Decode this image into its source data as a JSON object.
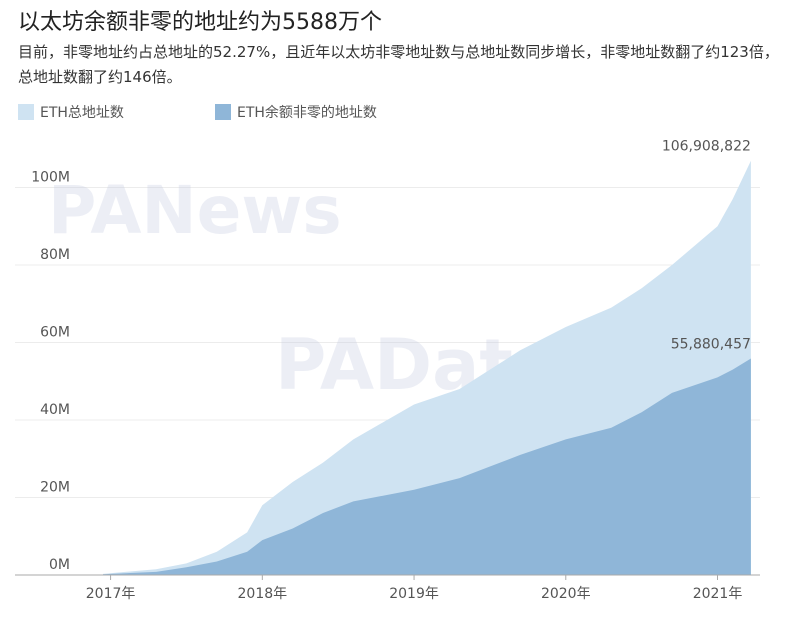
{
  "chart_data": {
    "type": "area",
    "title": "以太坊余额非零的地址约为5588万个",
    "subtitle": "目前，非零地址约占总地址的52.27%，且近年以太坊非零地址数与总地址数同步增长，非零地址数翻了约123倍，总地址数翻了约146倍。",
    "watermarks": [
      "PANews",
      "PAData"
    ],
    "legend": "top-left",
    "grid": true,
    "x": [
      2016.95,
      2017.3,
      2017.5,
      2017.7,
      2017.9,
      2018.0,
      2018.2,
      2018.4,
      2018.6,
      2019.0,
      2019.3,
      2019.5,
      2019.7,
      2020.0,
      2020.3,
      2020.5,
      2020.7,
      2021.0,
      2021.1,
      2021.22
    ],
    "xlim": [
      2016.37,
      2021.28
    ],
    "xticks": [
      {
        "value": 2017,
        "label": "2017年"
      },
      {
        "value": 2018,
        "label": "2018年"
      },
      {
        "value": 2019,
        "label": "2019年"
      },
      {
        "value": 2020,
        "label": "2020年"
      },
      {
        "value": 2021,
        "label": "2021年"
      }
    ],
    "ylim": [
      0,
      112000000
    ],
    "yticks": [
      {
        "value": 0,
        "label": "0M"
      },
      {
        "value": 20000000,
        "label": "20M"
      },
      {
        "value": 40000000,
        "label": "40M"
      },
      {
        "value": 60000000,
        "label": "60M"
      },
      {
        "value": 80000000,
        "label": "80M"
      },
      {
        "value": 100000000,
        "label": "100M"
      }
    ],
    "series": [
      {
        "name": "ETH总地址数",
        "color": "#cfe3f2",
        "values": [
          300000,
          1500000,
          3000000,
          6000000,
          11000000,
          18000000,
          24000000,
          29000000,
          35000000,
          44000000,
          48000000,
          53000000,
          58000000,
          64000000,
          69000000,
          74000000,
          80000000,
          90000000,
          97000000,
          106908822
        ],
        "value_labels": [
          null,
          null,
          null,
          null,
          null,
          null,
          null,
          null,
          null,
          null,
          null,
          null,
          null,
          null,
          null,
          null,
          null,
          null,
          null,
          "106,908,822"
        ]
      },
      {
        "name": "ETH余额非零的地址数",
        "color": "#8fb6d8",
        "values": [
          200000,
          800000,
          2000000,
          3500000,
          6000000,
          9000000,
          12000000,
          16000000,
          19000000,
          22000000,
          25000000,
          28000000,
          31000000,
          35000000,
          38000000,
          42000000,
          47000000,
          51000000,
          53000000,
          55880457
        ],
        "value_labels": [
          null,
          null,
          null,
          null,
          null,
          null,
          null,
          null,
          null,
          null,
          null,
          null,
          null,
          null,
          null,
          null,
          null,
          null,
          null,
          "55,880,457"
        ]
      }
    ]
  }
}
